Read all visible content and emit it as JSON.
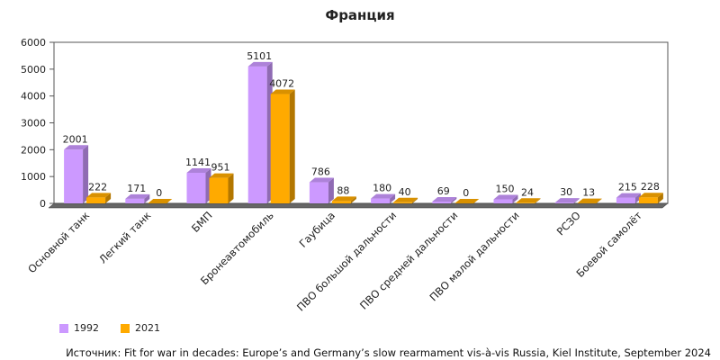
{
  "chart_data": {
    "type": "bar",
    "title": "Франция",
    "categories": [
      "Основной танк",
      "Легкий танк",
      "БМП",
      "Бронеавтомобиль",
      "Гаубица",
      "ПВО большой дальности",
      "ПВО средней дальности",
      "ПВО малой дальности",
      "РСЗО",
      "Боевой самолёт"
    ],
    "series": [
      {
        "name": "1992",
        "values": [
          2001,
          171,
          1141,
          5101,
          786,
          180,
          69,
          150,
          30,
          215
        ],
        "color": "#cc99ff"
      },
      {
        "name": "2021",
        "values": [
          222,
          0,
          951,
          4072,
          88,
          40,
          0,
          24,
          13,
          228
        ],
        "color": "#ffaa00"
      }
    ],
    "ylim": [
      0,
      6000
    ],
    "yticks": [
      0,
      1000,
      2000,
      3000,
      4000,
      5000,
      6000
    ],
    "grid": false,
    "legend": "bottom-left",
    "xlabel": "",
    "ylabel": ""
  },
  "source": "Источник: Fit for war in decades: Europe’s and Germany’s slow rearmament vis-à-vis Russia, Kiel Institute, September 2024"
}
